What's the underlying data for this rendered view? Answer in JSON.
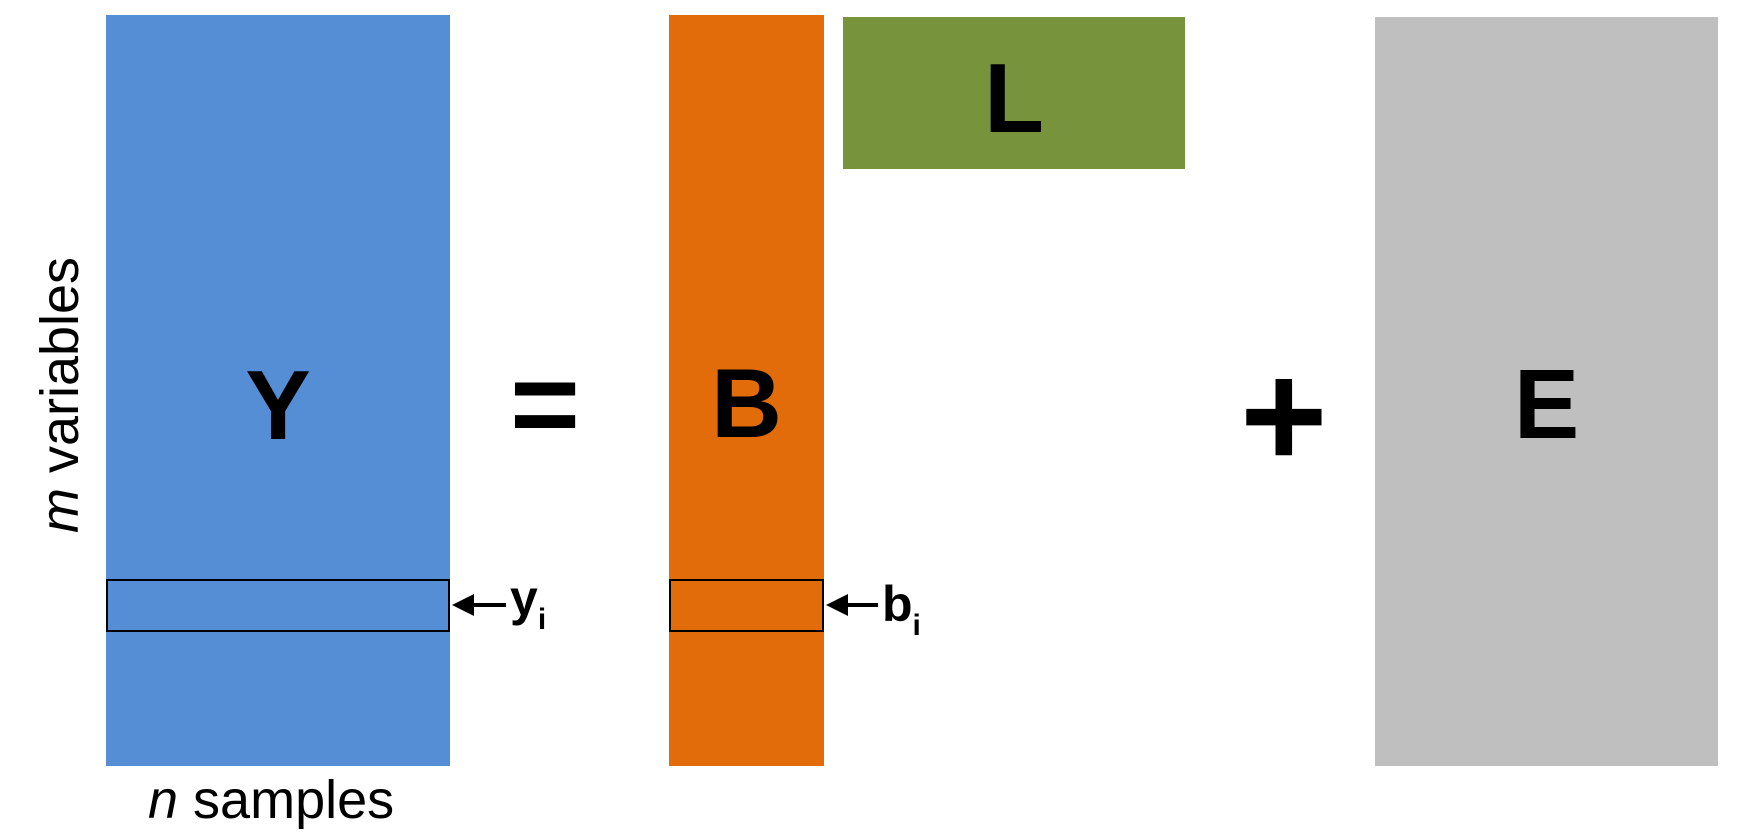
{
  "matrices": {
    "y": {
      "label": "Y",
      "color": "#558ed5"
    },
    "b": {
      "label": "B",
      "color": "#e36c0a"
    },
    "l": {
      "label": "L",
      "color": "#77933c"
    },
    "e": {
      "label": "E",
      "color": "#bfbfbf"
    }
  },
  "operators": {
    "equals": "=",
    "plus": "+"
  },
  "row_labels": {
    "yi": {
      "main": "y",
      "sub": "i"
    },
    "bi": {
      "main": "b",
      "sub": "i"
    }
  },
  "axes": {
    "x": {
      "var": "n",
      "text": " samples"
    },
    "y": {
      "var": "m",
      "text": " variables"
    }
  }
}
